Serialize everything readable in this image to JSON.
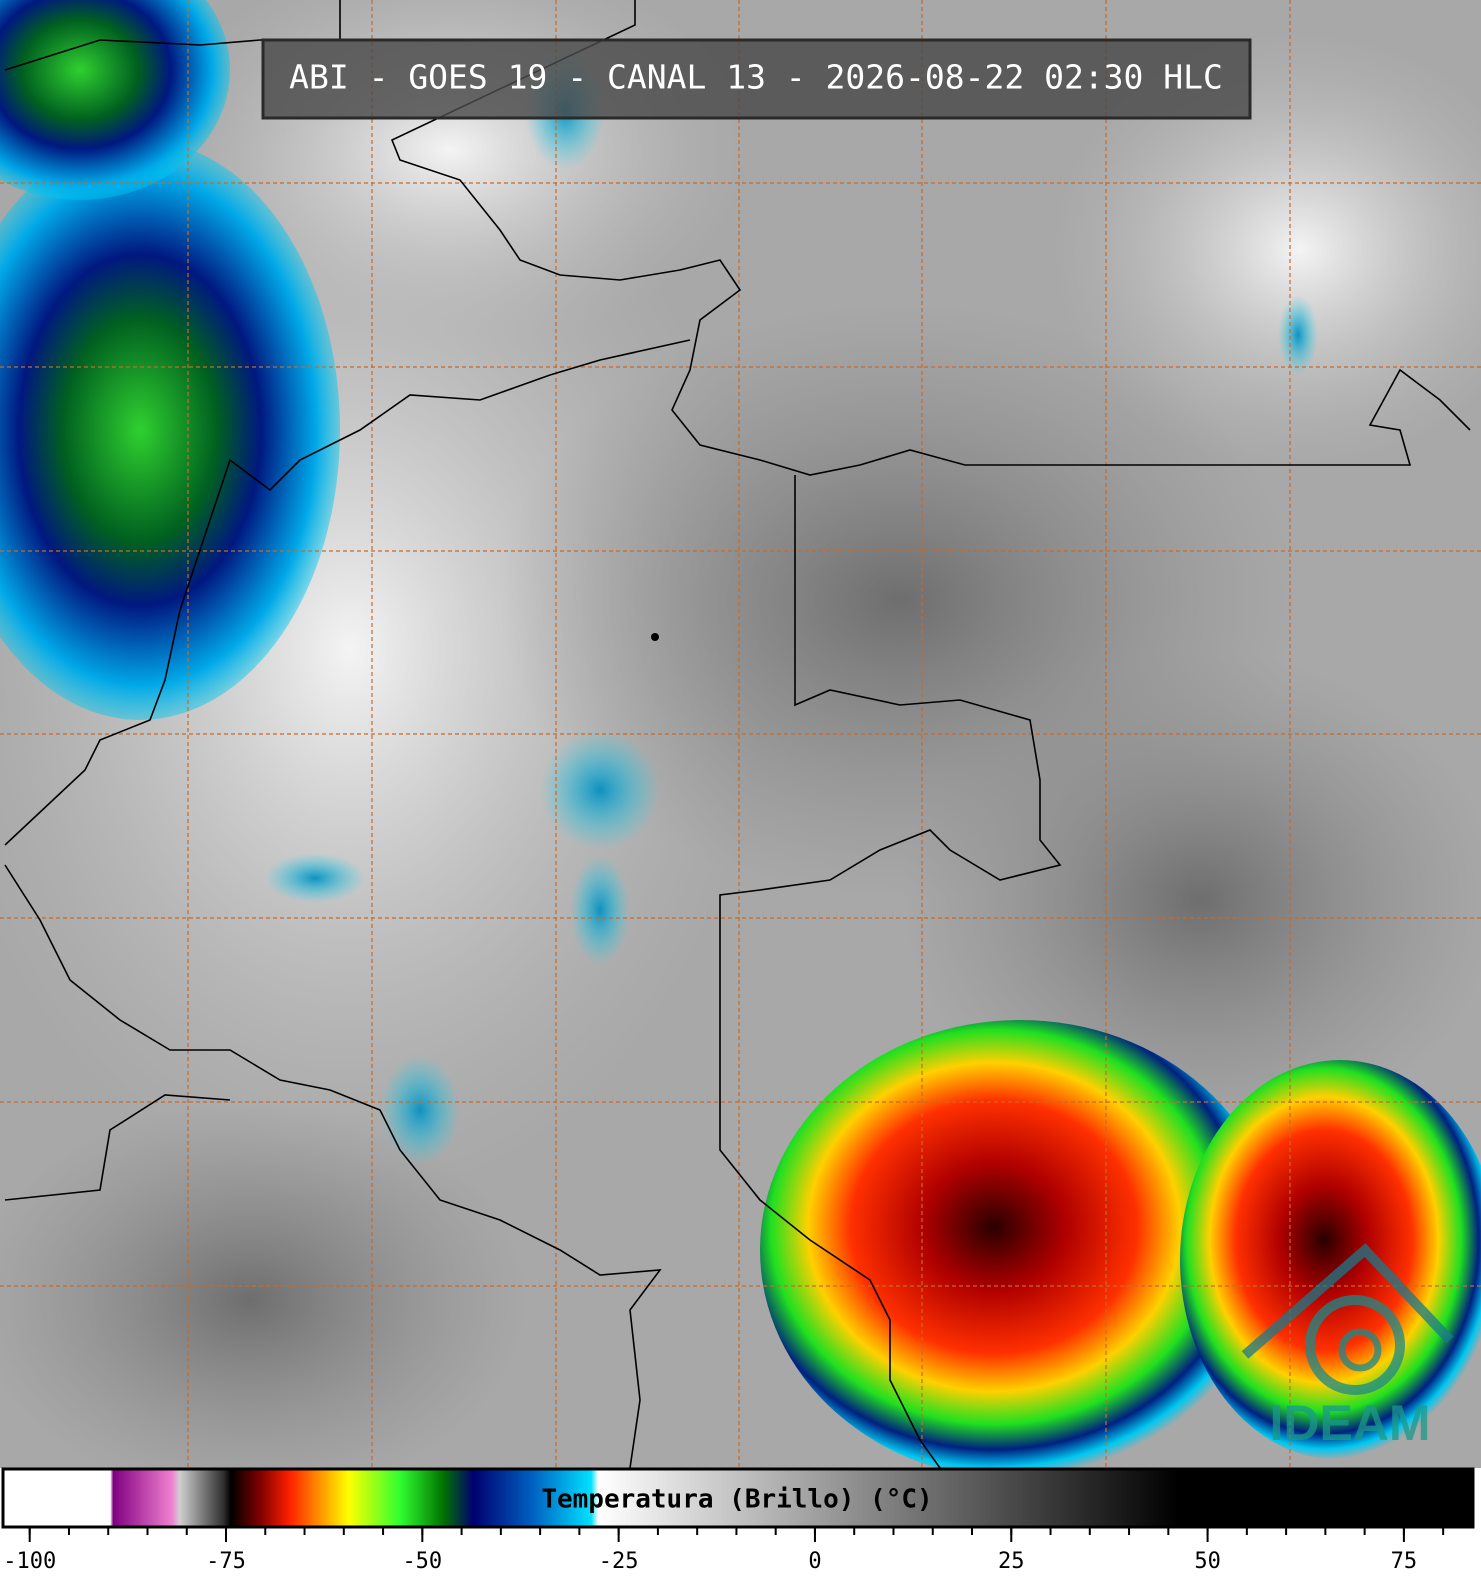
{
  "title": "ABI - GOES 19 - CANAL 13 - 2026-08-22 02:30 HLC",
  "colorbar": {
    "label": "Temperatura (Brillo) (°C)",
    "range": [
      -103.4,
      83.8
    ],
    "ticks": [
      -100,
      -75,
      -50,
      -25,
      0,
      25,
      50,
      75
    ],
    "minor_ticks": [
      -100,
      -95,
      -90,
      -85,
      -80,
      -75,
      -70,
      -65,
      -60,
      -55,
      -50,
      -45,
      -40,
      -35,
      -30,
      -25,
      -20,
      -15,
      -10,
      -5,
      0,
      5,
      10,
      15,
      20,
      25,
      30,
      35,
      40,
      45,
      50,
      55,
      60,
      65,
      70,
      75,
      80
    ]
  },
  "logo": "IDEAM"
}
